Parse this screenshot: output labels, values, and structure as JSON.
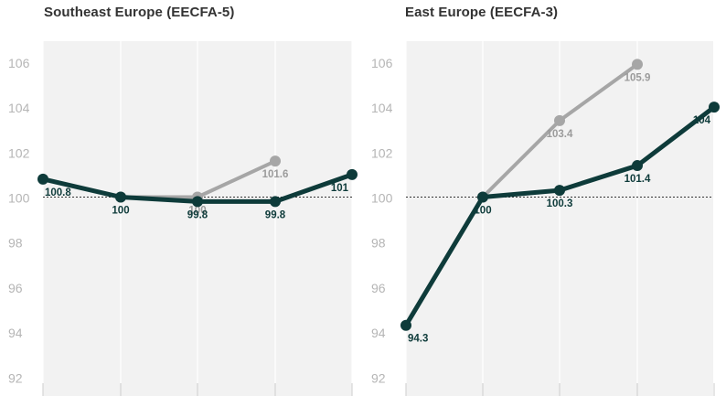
{
  "chart_data": [
    {
      "type": "line",
      "title": "Southeast Europe (EECFA-5)",
      "ylim": [
        91.5,
        107
      ],
      "yticks": [
        92,
        94,
        96,
        98,
        100,
        102,
        104,
        106
      ],
      "x": [
        0,
        1,
        2,
        3,
        4
      ],
      "reference_line": 100,
      "grid": "vertical",
      "series": [
        {
          "color": "#a6a6a6",
          "x": [
            1,
            2,
            3
          ],
          "values": [
            100,
            100,
            101.6
          ],
          "labels": [
            "",
            "100",
            "101.6"
          ]
        },
        {
          "color": "#0e3b3a",
          "x": [
            0,
            1,
            2,
            3,
            4
          ],
          "values": [
            100.8,
            100,
            99.8,
            99.8,
            101
          ],
          "labels": [
            "100.8",
            "100",
            "99.8",
            "99.8",
            "101"
          ]
        }
      ]
    },
    {
      "type": "line",
      "title": "East Europe (EECFA-3)",
      "ylim": [
        91.5,
        107
      ],
      "yticks": [
        92,
        94,
        96,
        98,
        100,
        102,
        104,
        106
      ],
      "x": [
        0,
        1,
        2,
        3,
        4
      ],
      "reference_line": 100,
      "grid": "vertical",
      "series": [
        {
          "color": "#a6a6a6",
          "x": [
            1,
            2,
            3
          ],
          "values": [
            100,
            103.4,
            105.9
          ],
          "labels": [
            "",
            "103.4",
            "105.9"
          ]
        },
        {
          "color": "#0e3b3a",
          "x": [
            0,
            1,
            2,
            3,
            4
          ],
          "values": [
            94.3,
            100,
            100.3,
            101.4,
            104
          ],
          "labels": [
            "94.3",
            "100",
            "100.3",
            "101.4",
            "104"
          ]
        }
      ]
    }
  ]
}
